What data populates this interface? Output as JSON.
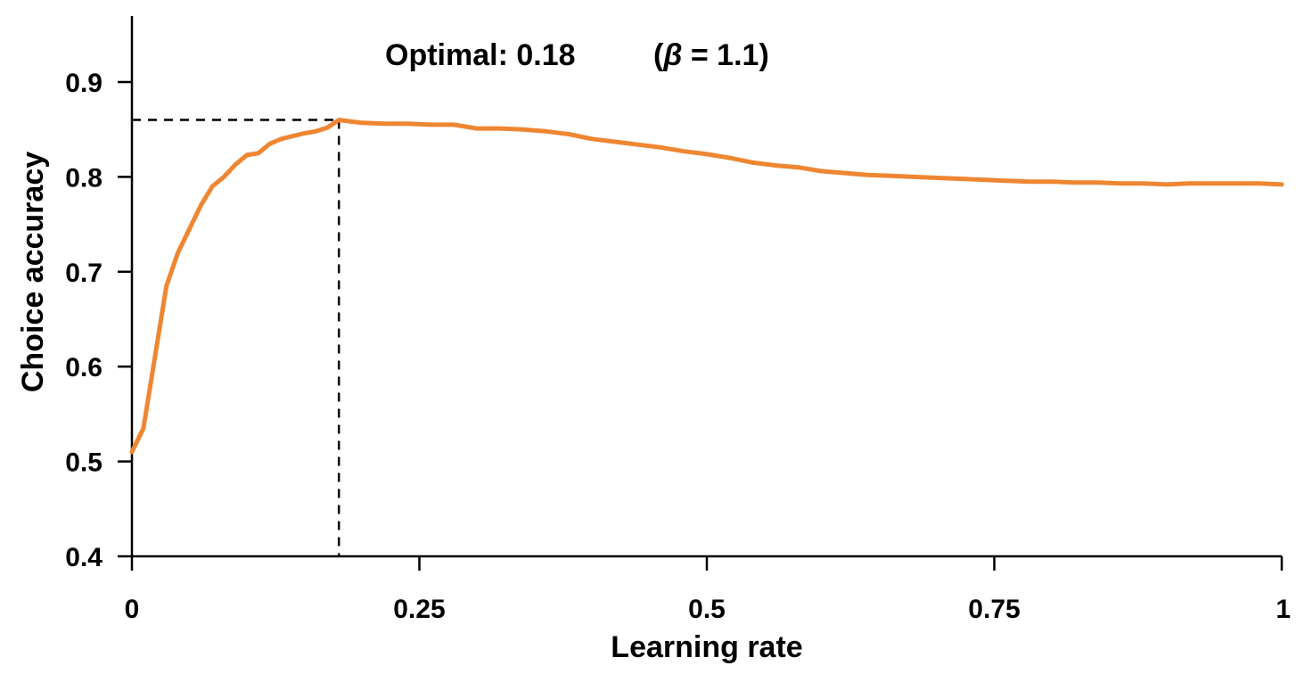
{
  "chart_data": {
    "type": "line",
    "xlabel": "Learning rate",
    "ylabel": "Choice accuracy",
    "xlim": [
      0,
      1
    ],
    "ylim": [
      0.4,
      0.95
    ],
    "x_ticks": [
      0,
      0.25,
      0.5,
      0.75,
      1
    ],
    "x_tick_labels": [
      "0",
      "0.25",
      "0.5",
      "0.75",
      "1"
    ],
    "y_ticks": [
      0.4,
      0.5,
      0.6,
      0.7,
      0.8,
      0.9
    ],
    "y_tick_labels": [
      "0.4",
      "0.5",
      "0.6",
      "0.7",
      "0.8",
      "0.9"
    ],
    "grid": false,
    "annotation": {
      "optimal_text": "Optimal: 0.18",
      "beta_open": "(",
      "beta_symbol": "β",
      "beta_rest": " = 1.1)"
    },
    "optimal": {
      "x": 0.18,
      "y": 0.86
    },
    "line_color": "#EE8632",
    "series": [
      {
        "x": [
          0,
          0.01,
          0.02,
          0.03,
          0.04,
          0.05,
          0.06,
          0.07,
          0.08,
          0.09,
          0.1,
          0.11,
          0.12,
          0.13,
          0.14,
          0.15,
          0.16,
          0.17,
          0.18,
          0.2,
          0.22,
          0.24,
          0.26,
          0.28,
          0.3,
          0.32,
          0.34,
          0.36,
          0.38,
          0.4,
          0.42,
          0.44,
          0.46,
          0.48,
          0.5,
          0.52,
          0.54,
          0.56,
          0.58,
          0.6,
          0.62,
          0.64,
          0.66,
          0.68,
          0.7,
          0.72,
          0.74,
          0.76,
          0.78,
          0.8,
          0.82,
          0.84,
          0.86,
          0.88,
          0.9,
          0.92,
          0.94,
          0.96,
          0.98,
          1.0
        ],
        "values": [
          0.51,
          0.535,
          0.61,
          0.685,
          0.72,
          0.745,
          0.77,
          0.79,
          0.8,
          0.813,
          0.823,
          0.825,
          0.835,
          0.84,
          0.843,
          0.846,
          0.848,
          0.852,
          0.86,
          0.857,
          0.856,
          0.856,
          0.855,
          0.855,
          0.851,
          0.851,
          0.85,
          0.848,
          0.845,
          0.84,
          0.837,
          0.834,
          0.831,
          0.827,
          0.824,
          0.82,
          0.815,
          0.812,
          0.81,
          0.806,
          0.804,
          0.802,
          0.801,
          0.8,
          0.799,
          0.798,
          0.797,
          0.796,
          0.795,
          0.795,
          0.794,
          0.794,
          0.793,
          0.793,
          0.792,
          0.793,
          0.793,
          0.793,
          0.793,
          0.792
        ]
      }
    ]
  }
}
